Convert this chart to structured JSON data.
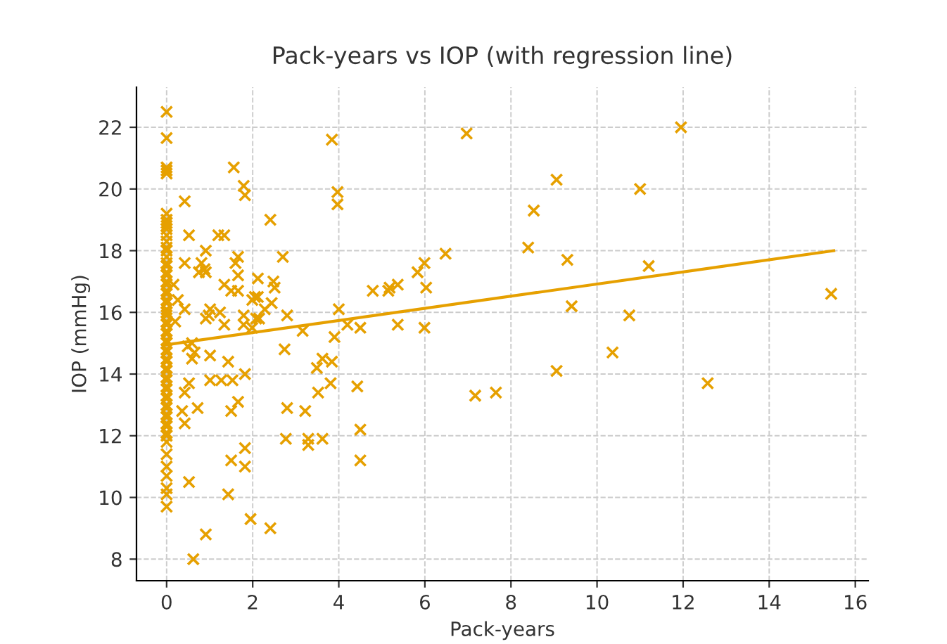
{
  "chart_data": {
    "type": "scatter",
    "title": "Pack-years vs IOP (with regression line)",
    "xlabel": "Pack-years",
    "ylabel": "IOP (mmHg)",
    "xlim": [
      -0.7,
      16.3
    ],
    "ylim": [
      7.3,
      23.3
    ],
    "xticks": [
      0,
      2,
      4,
      6,
      8,
      10,
      12,
      14,
      16
    ],
    "yticks": [
      8,
      10,
      12,
      14,
      16,
      18,
      20,
      22
    ],
    "grid": true,
    "series": [
      {
        "marker": "cross",
        "color": "#e6a000",
        "x": [
          0,
          0,
          0,
          0,
          0,
          0,
          0,
          0,
          0,
          0,
          0,
          0,
          0,
          0,
          0,
          0,
          0,
          0,
          0,
          0,
          0,
          0,
          0,
          0,
          0,
          0,
          0,
          0,
          0,
          0,
          0,
          0,
          0,
          0,
          0,
          0,
          0,
          0,
          0,
          0,
          0,
          0,
          0,
          0,
          0,
          0,
          0,
          0,
          0,
          0,
          0,
          0,
          0,
          0,
          0,
          0,
          0,
          0,
          0,
          0,
          0,
          0.42,
          1.56,
          1.79,
          1.82,
          3.84,
          3.97,
          3.97,
          2.41,
          0.52,
          1.2,
          1.34,
          0.91,
          0.42,
          0.81,
          0.88,
          0.75,
          0.91,
          1.66,
          1.6,
          1.66,
          2.7,
          2.12,
          2.48,
          2.51,
          1.34,
          1.5,
          1.66,
          2.05,
          2.12,
          1.99,
          2.44,
          2.28,
          0.16,
          0.26,
          0.42,
          1.01,
          1.24,
          0.98,
          1.79,
          2.08,
          2.15,
          2.8,
          4.79,
          5.15,
          4.0,
          0.2,
          0.91,
          1.34,
          1.79,
          1.99,
          3.16,
          4.2,
          4.5,
          0.49,
          0.59,
          0.65,
          0.59,
          1.01,
          1.43,
          1.82,
          0.52,
          0.42,
          1.01,
          1.27,
          1.53,
          0.36,
          0.42,
          0.72,
          1.66,
          1.5,
          1.82,
          1.82,
          1.5,
          0.52,
          1.43,
          0.91,
          1.95,
          2.41,
          0.62,
          2.74,
          3.9,
          3.49,
          3.62,
          3.84,
          3.52,
          3.81,
          4.43,
          2.8,
          3.22,
          2.77,
          3.29,
          3.29,
          3.62,
          4.5,
          4.5,
          6.97,
          11.95,
          9.06,
          11.0,
          8.53,
          8.4,
          6.48,
          5.99,
          5.83,
          9.31,
          11.2,
          5.18,
          5.37,
          6.03,
          9.41,
          10.75,
          15.44,
          5.37,
          5.99,
          10.36,
          9.06,
          12.57,
          7.17,
          7.65
        ],
        "values": [
          22.5,
          21.65,
          20.7,
          20.6,
          20.5,
          19.2,
          19.0,
          18.9,
          18.8,
          18.7,
          18.5,
          18.3,
          18.1,
          18.0,
          17.8,
          17.6,
          17.5,
          17.3,
          17.2,
          17.0,
          16.9,
          16.7,
          16.6,
          16.4,
          16.3,
          16.1,
          16.0,
          15.9,
          15.7,
          15.6,
          15.4,
          15.3,
          15.1,
          15.0,
          14.8,
          14.7,
          14.5,
          14.4,
          14.2,
          14.1,
          13.9,
          13.8,
          13.6,
          13.5,
          13.3,
          13.2,
          13.0,
          12.9,
          12.7,
          12.6,
          12.4,
          12.3,
          12.1,
          12.0,
          11.8,
          11.4,
          11.0,
          10.7,
          10.3,
          10.1,
          9.7,
          19.6,
          20.7,
          20.1,
          19.8,
          21.6,
          19.9,
          19.5,
          19.0,
          18.5,
          18.5,
          18.5,
          18.0,
          17.6,
          17.6,
          17.4,
          17.3,
          17.3,
          17.8,
          17.6,
          17.2,
          17.8,
          17.1,
          17.0,
          16.8,
          16.9,
          16.7,
          16.7,
          16.5,
          16.5,
          16.4,
          16.3,
          16.1,
          16.9,
          16.4,
          16.1,
          16.1,
          16.0,
          15.9,
          15.9,
          15.8,
          15.8,
          15.9,
          16.7,
          16.7,
          16.1,
          15.7,
          15.8,
          15.6,
          15.6,
          15.5,
          15.4,
          15.6,
          15.5,
          14.9,
          15.0,
          14.7,
          14.5,
          14.6,
          14.4,
          14.0,
          13.7,
          13.4,
          13.8,
          13.8,
          13.8,
          12.8,
          12.4,
          12.9,
          13.1,
          12.8,
          11.6,
          11.0,
          11.2,
          10.5,
          10.1,
          8.8,
          9.3,
          9.0,
          8.0,
          14.8,
          15.2,
          14.2,
          14.5,
          14.4,
          13.4,
          13.7,
          13.6,
          12.9,
          12.8,
          11.9,
          11.9,
          11.7,
          11.9,
          12.2,
          11.2,
          21.8,
          22.0,
          20.3,
          20.0,
          19.3,
          18.1,
          17.9,
          17.6,
          17.3,
          17.7,
          17.5,
          16.8,
          16.9,
          16.8,
          16.2,
          15.9,
          16.6,
          15.6,
          15.5,
          14.7,
          14.1,
          13.7,
          13.3,
          13.4
        ]
      },
      {
        "type": "line",
        "color": "#e6a000",
        "x": [
          0,
          15.5
        ],
        "values": [
          14.95,
          18.0
        ]
      }
    ]
  }
}
